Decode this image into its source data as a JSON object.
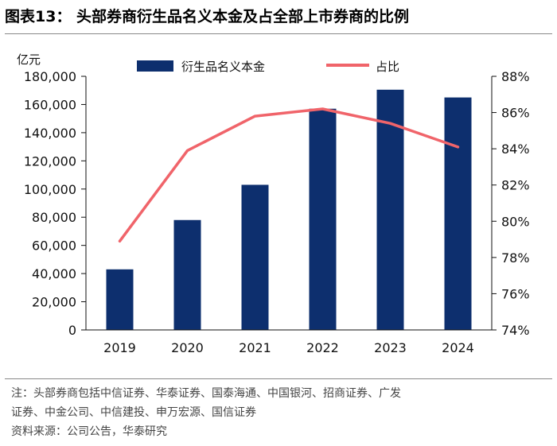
{
  "figure": {
    "title": "图表13：  头部券商衍生品名义本金及占全部上市券商的比例",
    "note_line1": "注：头部券商包括中信证券、华泰证券、国泰海通、中国银河、招商证券、广发",
    "note_line2": "证券、中金公司、中信建投、申万宏源、国信证券",
    "source": "资料来源：公司公告，华泰研究"
  },
  "chart_data": {
    "type": "bar",
    "categories": [
      "2019",
      "2020",
      "2021",
      "2022",
      "2023",
      "2024"
    ],
    "series": [
      {
        "name": "衍生品名义本金",
        "kind": "bar",
        "axis": "left",
        "color": "#0D2F6E",
        "values": [
          43000,
          78000,
          103000,
          157000,
          170500,
          165000
        ]
      },
      {
        "name": "占比",
        "kind": "line",
        "axis": "right",
        "color": "#F0646A",
        "values": [
          78.9,
          83.9,
          85.8,
          86.2,
          85.4,
          84.1
        ]
      }
    ],
    "y_left": {
      "unit_label": "亿元",
      "min": 0,
      "max": 180000,
      "step": 20000,
      "tick_labels": [
        "0",
        "20,000",
        "40,000",
        "60,000",
        "80,000",
        "100,000",
        "120,000",
        "140,000",
        "160,000",
        "180,000"
      ]
    },
    "y_right": {
      "min": 74,
      "max": 88,
      "step": 2,
      "tick_labels": [
        "74%",
        "76%",
        "78%",
        "80%",
        "82%",
        "84%",
        "86%",
        "88%"
      ]
    },
    "legend": {
      "position": "top",
      "items": [
        "衍生品名义本金",
        "占比"
      ]
    },
    "grid": false
  }
}
